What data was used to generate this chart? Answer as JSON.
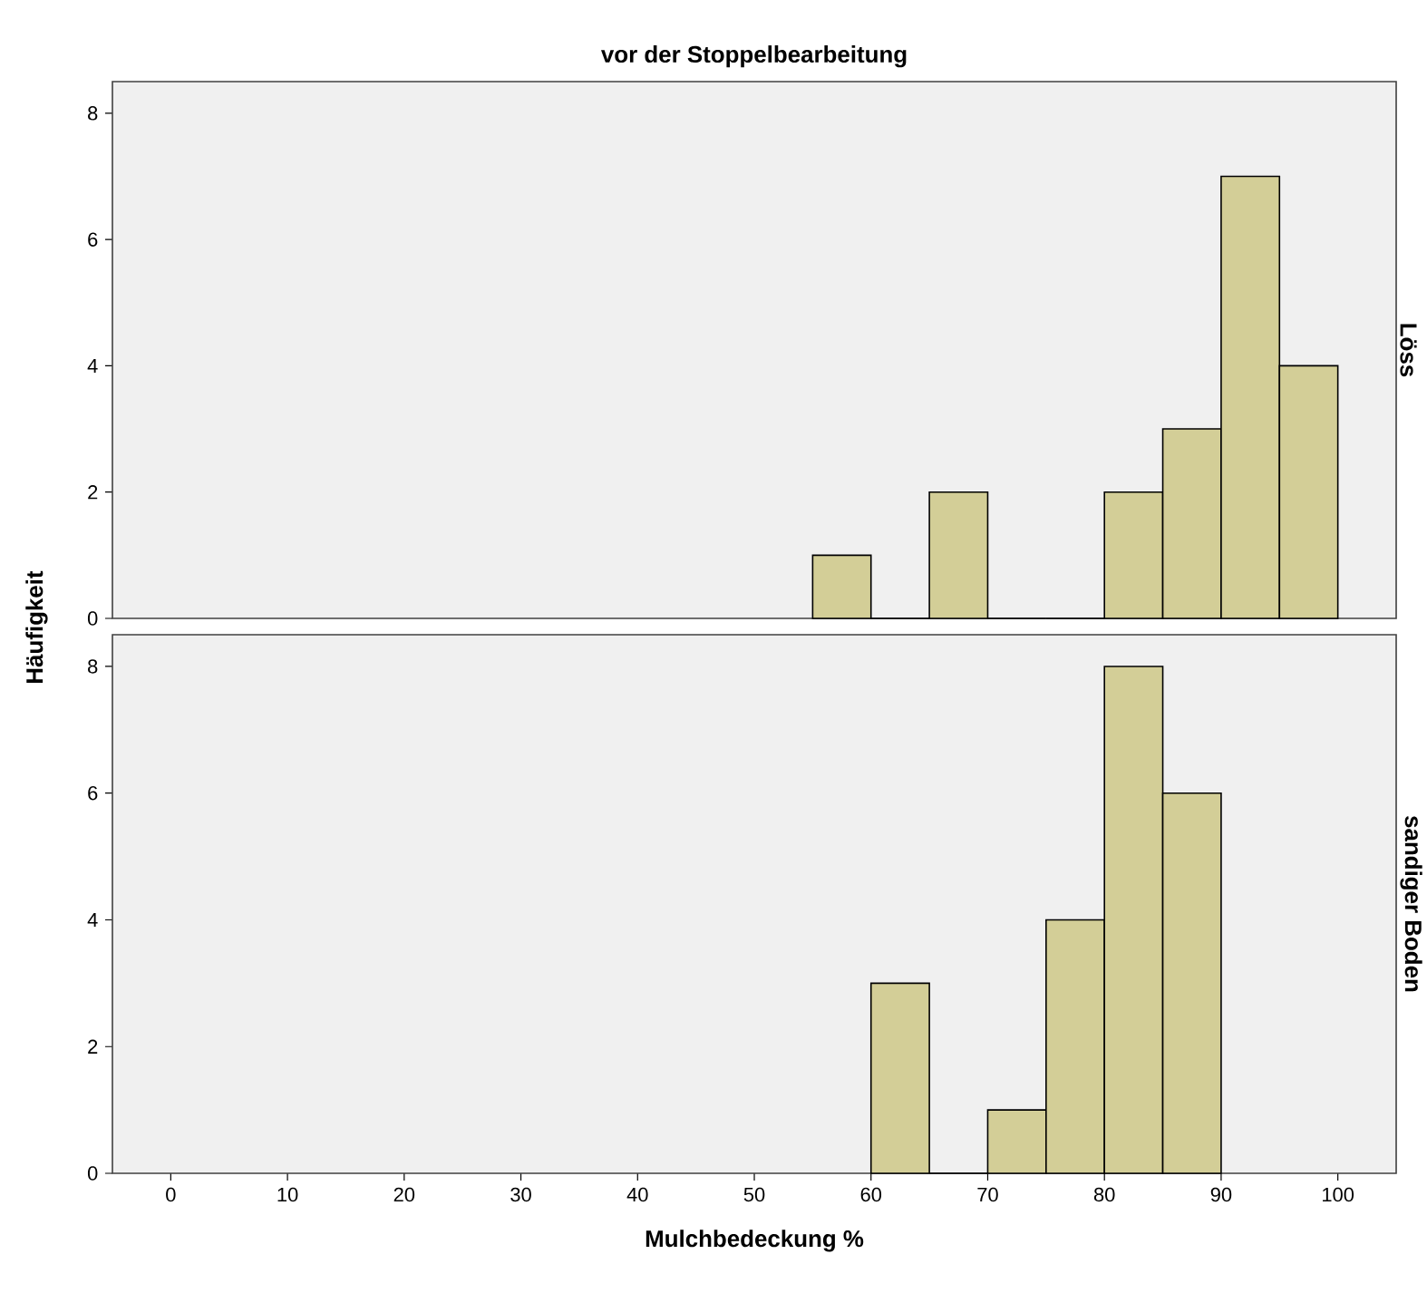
{
  "chart_data": [
    {
      "type": "histogram",
      "title": "vor der Stoppelbearbeitung",
      "ylabel": "Häufigkeit",
      "y2label": "Löss",
      "bins": [
        55,
        60,
        65,
        70,
        75,
        80,
        85,
        90,
        95,
        100
      ],
      "values": [
        1,
        0,
        2,
        0,
        0,
        2,
        3,
        7,
        4
      ],
      "color": "#d3ce97",
      "xlim": [
        -5,
        105
      ],
      "ylim": [
        0,
        8.5
      ],
      "yticks": [
        0,
        2,
        4,
        6,
        8
      ],
      "tick_labels": "y"
    },
    {
      "type": "histogram",
      "xlabel": "Mulchbedeckung %",
      "y2label": "sandiger Boden",
      "bins": [
        60,
        65,
        70,
        75,
        80,
        85,
        90
      ],
      "values": [
        3,
        0,
        1,
        4,
        8,
        6
      ],
      "color": "#d3ce97",
      "xlim": [
        -5,
        105
      ],
      "xticks": [
        0,
        10,
        20,
        30,
        40,
        50,
        60,
        70,
        80,
        90,
        100
      ],
      "ylim": [
        0,
        8.5
      ],
      "yticks": [
        0,
        2,
        4,
        6,
        8
      ]
    }
  ]
}
